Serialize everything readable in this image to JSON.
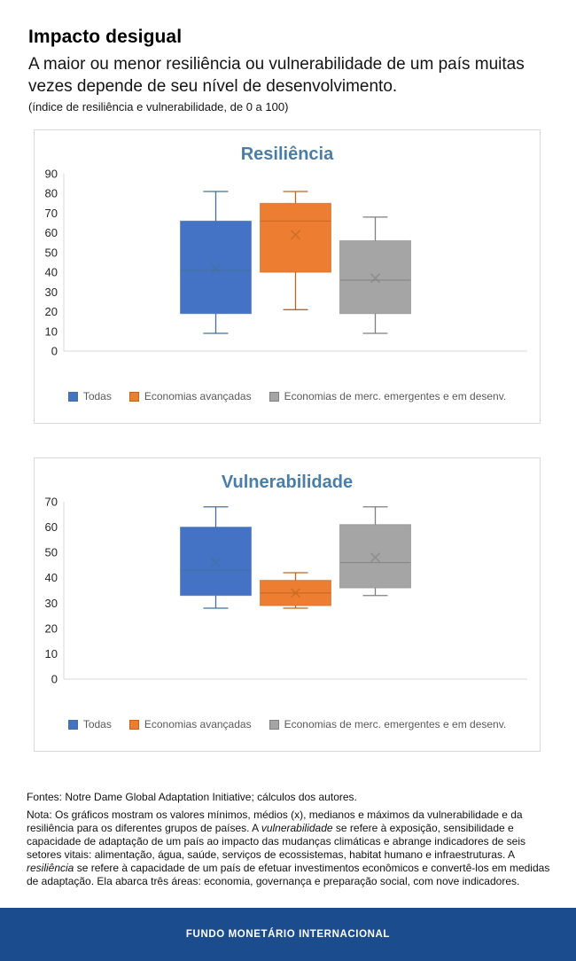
{
  "header": {
    "title": "Impacto desigual",
    "subtitle": "A maior ou menor resiliência ou vulnerabilidade de um país muitas vezes depende de seu nível de desenvolvimento.",
    "unit_note": "(índice de resiliência e vulnerabilidade, de 0 a 100)"
  },
  "colors": {
    "series_blue": "#4472C4",
    "series_orange": "#ED7D31",
    "series_gray": "#A5A5A5",
    "chart_title_blue": "#4a7ea8",
    "footer_band_blue": "#1b4d8e",
    "legend_text": "#595959"
  },
  "chart_data": [
    {
      "type": "boxplot",
      "title": "Resiliência",
      "ylim": [
        0,
        90
      ],
      "yticks": [
        0,
        10,
        20,
        30,
        40,
        50,
        60,
        70,
        80,
        90
      ],
      "grid": false,
      "legend_position": "bottom",
      "mean_marker": "x",
      "series": [
        {
          "name": "Todas",
          "color": "#4472C4",
          "dark": "#41719C",
          "min": 9,
          "q1": 19,
          "median": 41,
          "mean": 42,
          "q3": 66,
          "max": 81
        },
        {
          "name": "Economias avançadas",
          "color": "#ED7D31",
          "dark": "#BC6522",
          "min": 21,
          "q1": 40,
          "median": 66,
          "mean": 59,
          "q3": 75,
          "max": 81
        },
        {
          "name": "Economias de merc. emergentes e em desenv.",
          "color": "#A5A5A5",
          "dark": "#7F7F7F",
          "min": 9,
          "q1": 19,
          "median": 36,
          "mean": 37,
          "q3": 56,
          "max": 68
        }
      ]
    },
    {
      "type": "boxplot",
      "title": "Vulnerabilidade",
      "ylim": [
        0,
        70
      ],
      "yticks": [
        0,
        10,
        20,
        30,
        40,
        50,
        60,
        70
      ],
      "grid": false,
      "legend_position": "bottom",
      "mean_marker": "x",
      "series": [
        {
          "name": "Todas",
          "color": "#4472C4",
          "dark": "#41719C",
          "min": 28,
          "q1": 33,
          "median": 43,
          "mean": 46,
          "q3": 60,
          "max": 68
        },
        {
          "name": "Economias avançadas",
          "color": "#ED7D31",
          "dark": "#BC6522",
          "min": 28,
          "q1": 29,
          "median": 34,
          "mean": 34,
          "q3": 39,
          "max": 42
        },
        {
          "name": "Economias de merc. emergentes e em desenv.",
          "color": "#A5A5A5",
          "dark": "#7F7F7F",
          "min": 33,
          "q1": 36,
          "median": 46,
          "mean": 48,
          "q3": 61,
          "max": 68
        }
      ]
    }
  ],
  "footer": {
    "sources": "Fontes: Notre Dame Global Adaptation Initiative; cálculos dos autores.",
    "note": {
      "p1": "Nota: Os gráficos mostram os valores mínimos, médios (x), medianos e máximos da vulnerabilidade e da resiliência para os diferentes grupos de países. A ",
      "i1": "vulnerabilidade",
      "p2": " se refere à exposição, sensibilidade e capacidade de adaptação de um país ao impacto das mudanças climáticas e abrange indicadores de seis setores vitais: alimentação, água, saúde, serviços de ecossistemas, habitat humano e infraestruturas. A ",
      "i2": "resiliência",
      "p3": " se refere à capacidade de um país de efetuar investimentos econômicos e convertê-los em medidas de adaptação. Ela abarca três áreas: economia, governança e preparação social, com nove indicadores."
    },
    "band_text": "FUNDO MONETÁRIO INTERNACIONAL"
  }
}
